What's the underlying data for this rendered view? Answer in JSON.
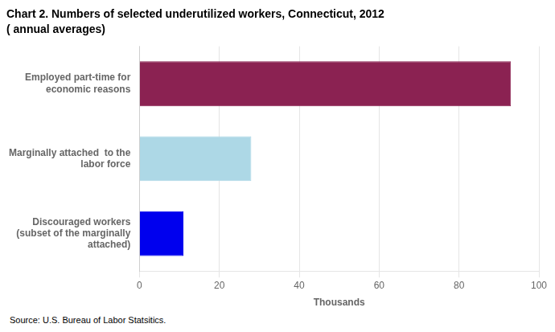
{
  "chart_data": {
    "type": "bar",
    "orientation": "horizontal",
    "title": "Chart 2. Numbers of selected underutilized workers, Connecticut, 2012",
    "subtitle": "( annual averages)",
    "source": "Source: U.S. Bureau of Labor Statsitics.",
    "categories": [
      "Discouraged workers\n(subset of the marginally\nattached)",
      "Marginally attached  to the\nlabor force",
      "Employed part-time for\neconomic reasons"
    ],
    "values": [
      11,
      28,
      93
    ],
    "colors": [
      "#0000EE",
      "#ADD8E6",
      "#8B2252"
    ],
    "xlabel": "Thousands",
    "xlim": [
      0,
      100
    ],
    "xticks": [
      0,
      20,
      40,
      60,
      80,
      100
    ],
    "grid": true
  }
}
